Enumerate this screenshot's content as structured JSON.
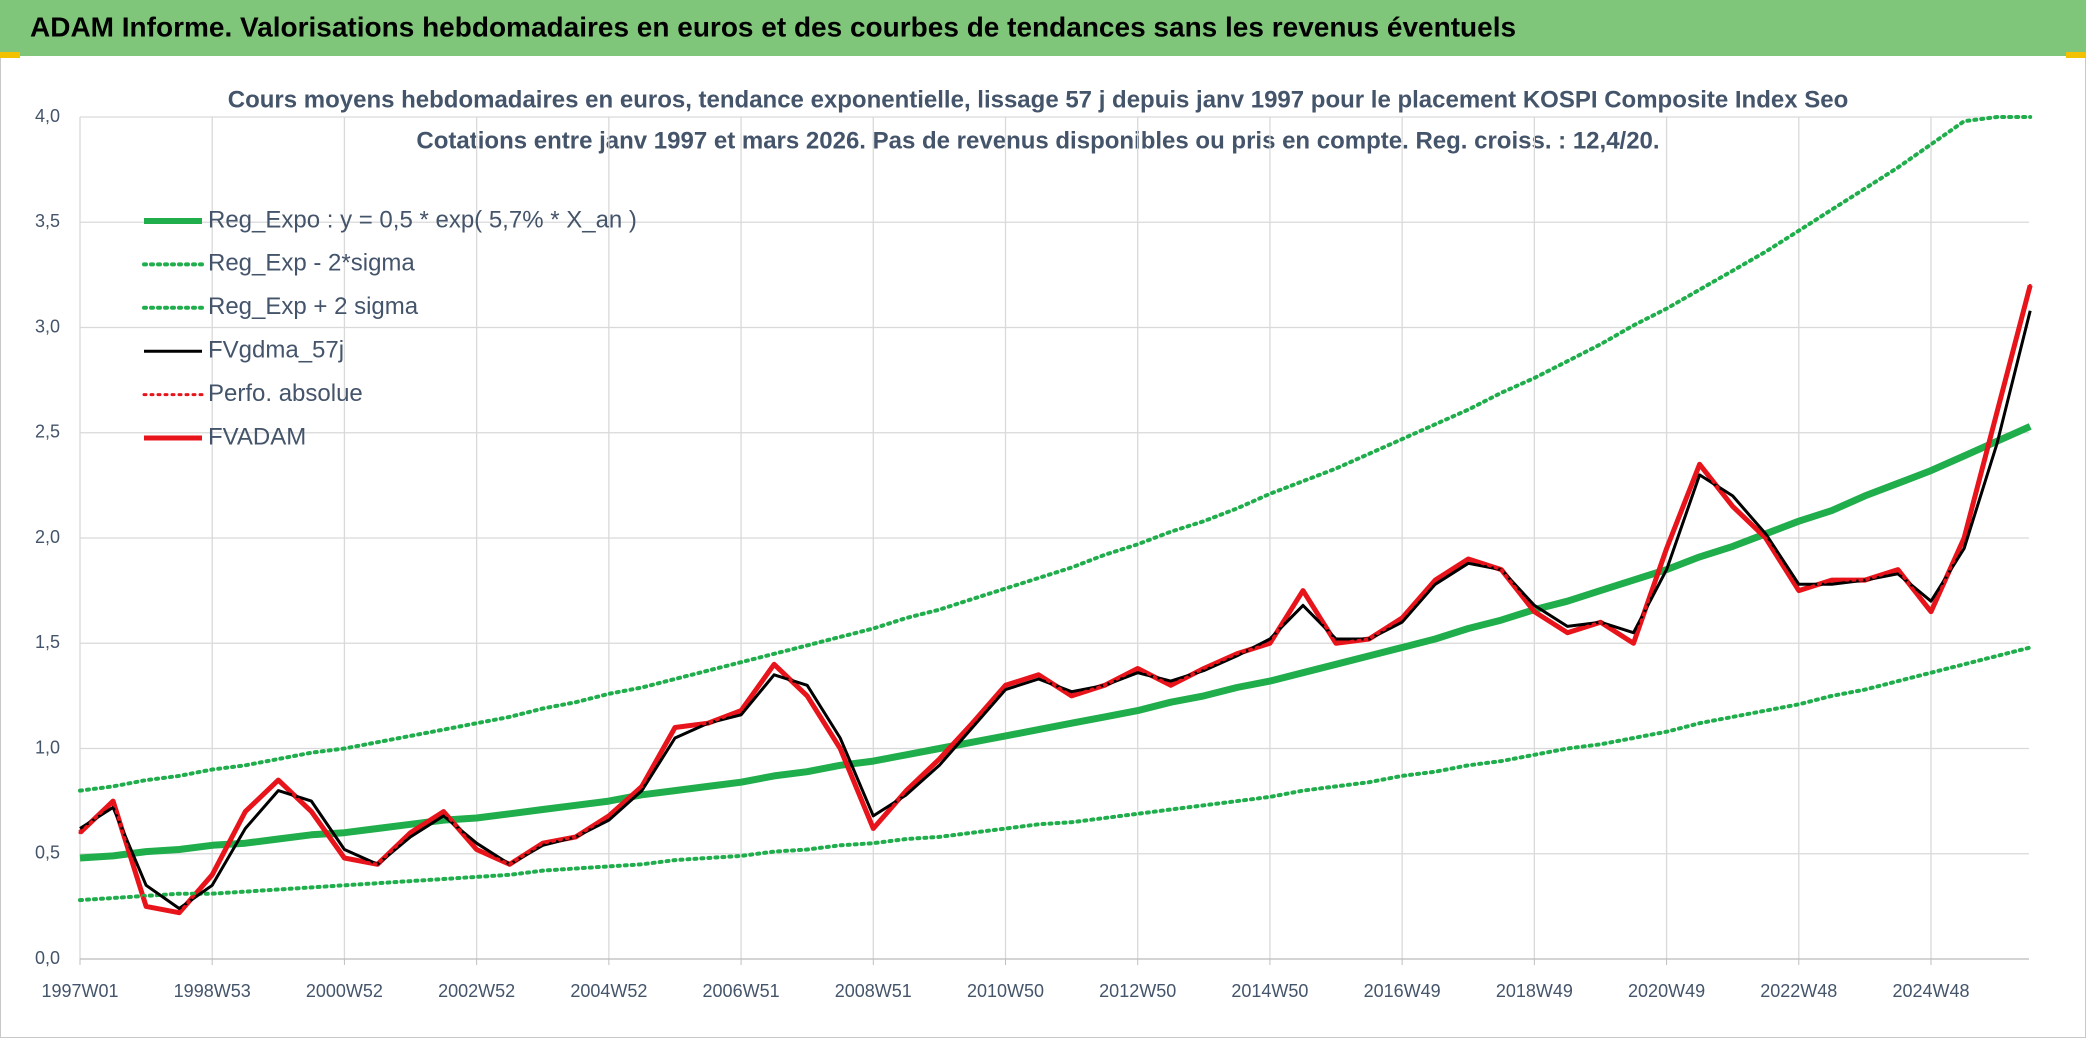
{
  "header": {
    "title": "ADAM Informe. Valorisations hebdomadaires en euros et des courbes de tendances sans les revenus éventuels"
  },
  "chart_data": {
    "type": "line",
    "title": "Cours moyens hebdomadaires en euros, tendance exponentielle, lissage 57 j depuis janv 1997 pour le placement KOSPI Composite Index Seo",
    "subtitle": "Cotations entre janv 1997 et mars 2026. Pas de revenus disponibles ou pris en compte. Reg. croiss. : 12,4/20.",
    "categories": [
      "1997W01",
      null,
      null,
      null,
      "1998W53",
      null,
      null,
      null,
      "2000W52",
      null,
      null,
      null,
      "2002W52",
      null,
      null,
      null,
      "2004W52",
      null,
      null,
      null,
      "2006W51",
      null,
      null,
      null,
      "2008W51",
      null,
      null,
      null,
      "2010W50",
      null,
      null,
      null,
      "2012W50",
      null,
      null,
      null,
      "2014W50",
      null,
      null,
      null,
      "2016W49",
      null,
      null,
      null,
      "2018W49",
      null,
      null,
      null,
      "2020W49",
      null,
      null,
      null,
      "2022W48",
      null,
      null,
      null,
      "2024W48",
      null,
      null,
      null
    ],
    "ylim": [
      0,
      4
    ],
    "yticks": [
      {
        "value": 0,
        "label": "0,0"
      },
      {
        "value": 0.5,
        "label": "0,5"
      },
      {
        "value": 1,
        "label": "1,0"
      },
      {
        "value": 1.5,
        "label": "1,5"
      },
      {
        "value": 2,
        "label": "2,0"
      },
      {
        "value": 2.5,
        "label": "2,5"
      },
      {
        "value": 3,
        "label": "3,0"
      },
      {
        "value": 3.5,
        "label": "3,5"
      },
      {
        "value": 4,
        "label": "4,0"
      }
    ],
    "grid": true,
    "legend": "top-left",
    "series": [
      {
        "name": "Reg_Expo : y = 0,5 * exp( 5,7% *  X_an )",
        "color": "#1fae4b",
        "style": "solid",
        "width": 7,
        "values": [
          0.48,
          0.49,
          0.51,
          0.52,
          0.54,
          0.55,
          0.57,
          0.59,
          0.6,
          0.62,
          0.64,
          0.66,
          0.67,
          0.69,
          0.71,
          0.73,
          0.75,
          0.78,
          0.8,
          0.82,
          0.84,
          0.87,
          0.89,
          0.92,
          0.94,
          0.97,
          1.0,
          1.03,
          1.06,
          1.09,
          1.12,
          1.15,
          1.18,
          1.22,
          1.25,
          1.29,
          1.32,
          1.36,
          1.4,
          1.44,
          1.48,
          1.52,
          1.57,
          1.61,
          1.66,
          1.7,
          1.75,
          1.8,
          1.85,
          1.91,
          1.96,
          2.02,
          2.08,
          2.13,
          2.2,
          2.26,
          2.32,
          2.39,
          2.46,
          2.53
        ]
      },
      {
        "name": "Reg_Exp - 2*sigma",
        "color": "#1fae4b",
        "style": "dotted",
        "width": 4,
        "values": [
          0.28,
          0.29,
          0.3,
          0.31,
          0.31,
          0.32,
          0.33,
          0.34,
          0.35,
          0.36,
          0.37,
          0.38,
          0.39,
          0.4,
          0.42,
          0.43,
          0.44,
          0.45,
          0.47,
          0.48,
          0.49,
          0.51,
          0.52,
          0.54,
          0.55,
          0.57,
          0.58,
          0.6,
          0.62,
          0.64,
          0.65,
          0.67,
          0.69,
          0.71,
          0.73,
          0.75,
          0.77,
          0.8,
          0.82,
          0.84,
          0.87,
          0.89,
          0.92,
          0.94,
          0.97,
          1.0,
          1.02,
          1.05,
          1.08,
          1.12,
          1.15,
          1.18,
          1.21,
          1.25,
          1.28,
          1.32,
          1.36,
          1.4,
          1.44,
          1.48
        ]
      },
      {
        "name": "Reg_Exp + 2 sigma",
        "color": "#1fae4b",
        "style": "dotted",
        "width": 4,
        "values": [
          0.8,
          0.82,
          0.85,
          0.87,
          0.9,
          0.92,
          0.95,
          0.98,
          1.0,
          1.03,
          1.06,
          1.09,
          1.12,
          1.15,
          1.19,
          1.22,
          1.26,
          1.29,
          1.33,
          1.37,
          1.41,
          1.45,
          1.49,
          1.53,
          1.57,
          1.62,
          1.66,
          1.71,
          1.76,
          1.81,
          1.86,
          1.92,
          1.97,
          2.03,
          2.08,
          2.14,
          2.21,
          2.27,
          2.33,
          2.4,
          2.47,
          2.54,
          2.61,
          2.69,
          2.76,
          2.84,
          2.92,
          3.01,
          3.09,
          3.18,
          3.27,
          3.36,
          3.46,
          3.56,
          3.66,
          3.76,
          3.87,
          3.98,
          4.0,
          4.0
        ]
      },
      {
        "name": "FVgdma_57j",
        "color": "#000000",
        "style": "solid",
        "width": 3,
        "values": [
          0.62,
          0.72,
          0.35,
          0.24,
          0.35,
          0.62,
          0.8,
          0.75,
          0.52,
          0.45,
          0.58,
          0.68,
          0.55,
          0.45,
          0.54,
          0.58,
          0.66,
          0.8,
          1.05,
          1.12,
          1.16,
          1.35,
          1.3,
          1.05,
          0.68,
          0.78,
          0.92,
          1.1,
          1.28,
          1.33,
          1.27,
          1.3,
          1.36,
          1.32,
          1.37,
          1.44,
          1.52,
          1.68,
          1.52,
          1.52,
          1.6,
          1.78,
          1.88,
          1.85,
          1.68,
          1.58,
          1.6,
          1.55,
          1.85,
          2.3,
          2.2,
          2.02,
          1.78,
          1.78,
          1.8,
          1.83,
          1.7,
          1.95,
          2.45,
          3.08
        ]
      },
      {
        "name": "Perfo. absolue",
        "color": "#e8141b",
        "style": "dotted",
        "width": 3,
        "values": [
          0.6,
          0.75,
          0.25,
          0.22,
          0.4,
          0.7,
          0.85,
          0.7,
          0.48,
          0.45,
          0.6,
          0.7,
          0.52,
          0.45,
          0.55,
          0.58,
          0.68,
          0.82,
          1.1,
          1.12,
          1.18,
          1.4,
          1.25,
          1.0,
          0.62,
          0.8,
          0.95,
          1.12,
          1.3,
          1.35,
          1.25,
          1.3,
          1.38,
          1.3,
          1.38,
          1.45,
          1.5,
          1.75,
          1.5,
          1.52,
          1.62,
          1.8,
          1.9,
          1.85,
          1.65,
          1.55,
          1.6,
          1.5,
          1.95,
          2.35,
          2.15,
          2.0,
          1.75,
          1.8,
          1.8,
          1.85,
          1.65,
          2.0,
          2.6,
          3.2
        ]
      },
      {
        "name": "FVADAM",
        "color": "#e8141b",
        "style": "solid",
        "width": 5,
        "values": [
          0.6,
          0.75,
          0.25,
          0.22,
          0.4,
          0.7,
          0.85,
          0.7,
          0.48,
          0.45,
          0.6,
          0.7,
          0.52,
          0.45,
          0.55,
          0.58,
          0.68,
          0.82,
          1.1,
          1.12,
          1.18,
          1.4,
          1.25,
          1.0,
          0.62,
          0.8,
          0.95,
          1.12,
          1.3,
          1.35,
          1.25,
          1.3,
          1.38,
          1.3,
          1.38,
          1.45,
          1.5,
          1.75,
          1.5,
          1.52,
          1.62,
          1.8,
          1.9,
          1.85,
          1.65,
          1.55,
          1.6,
          1.5,
          1.95,
          2.35,
          2.15,
          2.0,
          1.75,
          1.8,
          1.8,
          1.85,
          1.65,
          2.0,
          2.6,
          3.2
        ]
      }
    ]
  }
}
